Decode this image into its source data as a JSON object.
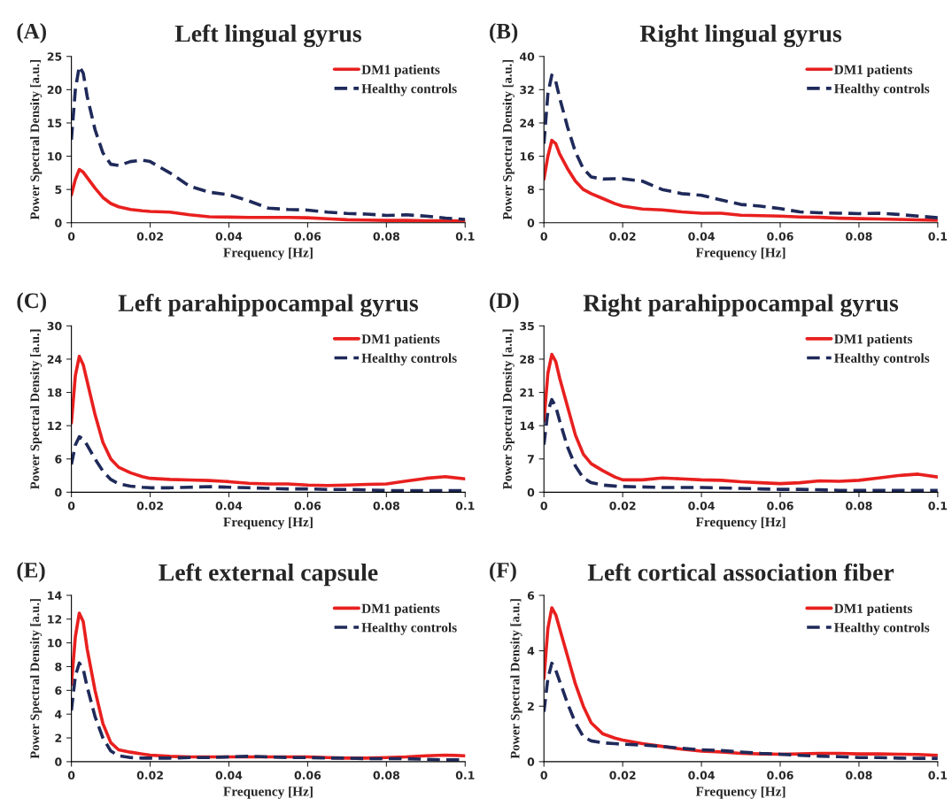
{
  "chart_data": [
    {
      "type": "line",
      "title": "Left lingual gyrus",
      "annotations": [
        "(A)"
      ],
      "xlabel": "Frequency [Hz]",
      "ylabel": "Power Spectral Density [a.u.]",
      "legend": "top right",
      "grid": false,
      "marker": "none",
      "x": [
        0,
        0.001,
        0.002,
        0.003,
        0.004,
        0.006,
        0.008,
        0.01,
        0.012,
        0.015,
        0.018,
        0.02,
        0.025,
        0.03,
        0.035,
        0.04,
        0.045,
        0.05,
        0.055,
        0.06,
        0.065,
        0.07,
        0.075,
        0.08,
        0.085,
        0.09,
        0.095,
        0.1
      ],
      "xlim": [
        0,
        0.1
      ],
      "xticks": [
        0,
        0.02,
        0.04,
        0.06,
        0.08,
        0.1
      ],
      "ylim": [
        0,
        25
      ],
      "yticks": [
        0,
        5,
        10,
        15,
        20,
        25
      ],
      "series": [
        {
          "name": "DM1 patients",
          "color": "#e8201f",
          "line_style": "solid",
          "values": [
            4.2,
            6.5,
            8.0,
            7.6,
            6.8,
            5.2,
            3.8,
            2.9,
            2.4,
            2.0,
            1.8,
            1.7,
            1.6,
            1.2,
            0.9,
            0.85,
            0.8,
            0.8,
            0.8,
            0.75,
            0.6,
            0.45,
            0.4,
            0.35,
            0.35,
            0.3,
            0.3,
            0.25
          ]
        },
        {
          "name": "Healthy controls",
          "color": "#1f2a5a",
          "line_style": "dashed",
          "values": [
            12.5,
            20,
            23.5,
            22.5,
            19,
            14,
            10.5,
            8.8,
            8.6,
            9.2,
            9.4,
            9.2,
            7.5,
            5.5,
            4.6,
            4.2,
            3.3,
            2.2,
            2.0,
            1.9,
            1.6,
            1.4,
            1.3,
            1.1,
            1.2,
            1.0,
            0.7,
            0.5
          ]
        }
      ]
    },
    {
      "type": "line",
      "title": "Right lingual gyrus",
      "annotations": [
        "(B)"
      ],
      "xlabel": "Frequency [Hz]",
      "ylabel": "Power Spectral Density [a.u.]",
      "legend": "top right",
      "grid": false,
      "marker": "none",
      "x": [
        0,
        0.001,
        0.002,
        0.003,
        0.004,
        0.006,
        0.008,
        0.01,
        0.012,
        0.015,
        0.018,
        0.02,
        0.025,
        0.03,
        0.035,
        0.04,
        0.045,
        0.05,
        0.055,
        0.06,
        0.065,
        0.07,
        0.075,
        0.08,
        0.085,
        0.09,
        0.095,
        0.1
      ],
      "xlim": [
        0,
        0.1
      ],
      "xticks": [
        0,
        0.02,
        0.04,
        0.06,
        0.08,
        0.1
      ],
      "ylim": [
        0,
        40
      ],
      "yticks": [
        0,
        8,
        16,
        24,
        32,
        40
      ],
      "series": [
        {
          "name": "DM1 patients",
          "color": "#e8201f",
          "line_style": "solid",
          "values": [
            10.5,
            16,
            19.8,
            19,
            16.5,
            13,
            10,
            8,
            7,
            5.8,
            4.6,
            4.0,
            3.3,
            3.1,
            2.6,
            2.3,
            2.3,
            1.8,
            1.7,
            1.6,
            1.4,
            1.3,
            1.1,
            1.0,
            0.9,
            0.8,
            0.7,
            0.6
          ]
        },
        {
          "name": "Healthy controls",
          "color": "#1f2a5a",
          "line_style": "dashed",
          "values": [
            19,
            31,
            35.5,
            34,
            30,
            23,
            17,
            13,
            11,
            10.5,
            10.6,
            10.6,
            10,
            8,
            7,
            6.6,
            5.5,
            4.4,
            4.0,
            3.4,
            2.6,
            2.4,
            2.3,
            2.2,
            2.3,
            2.0,
            1.6,
            1.2
          ]
        }
      ]
    },
    {
      "type": "line",
      "title": "Left parahippocampal gyrus",
      "annotations": [
        "(C)"
      ],
      "xlabel": "Frequency [Hz]",
      "ylabel": "Power Spectral Density [a.u.]",
      "legend": "top right",
      "grid": false,
      "marker": "none",
      "x": [
        0,
        0.001,
        0.002,
        0.003,
        0.004,
        0.006,
        0.008,
        0.01,
        0.012,
        0.015,
        0.018,
        0.02,
        0.025,
        0.03,
        0.035,
        0.04,
        0.045,
        0.05,
        0.055,
        0.06,
        0.065,
        0.07,
        0.075,
        0.08,
        0.085,
        0.09,
        0.095,
        0.1
      ],
      "xlim": [
        0,
        0.1
      ],
      "xticks": [
        0,
        0.02,
        0.04,
        0.06,
        0.08,
        0.1
      ],
      "ylim": [
        0,
        30
      ],
      "yticks": [
        0,
        6,
        12,
        18,
        24,
        30
      ],
      "series": [
        {
          "name": "DM1 patients",
          "color": "#e8201f",
          "line_style": "solid",
          "values": [
            12.5,
            21,
            24.5,
            23,
            20,
            14,
            9,
            6,
            4.5,
            3.5,
            2.8,
            2.5,
            2.3,
            2.2,
            2.1,
            1.9,
            1.6,
            1.5,
            1.5,
            1.3,
            1.2,
            1.3,
            1.4,
            1.5,
            2.0,
            2.5,
            2.8,
            2.4
          ]
        },
        {
          "name": "Healthy controls",
          "color": "#1f2a5a",
          "line_style": "dashed",
          "values": [
            5,
            8.5,
            10,
            9.6,
            8.5,
            6,
            3.8,
            2.3,
            1.5,
            1.1,
            0.9,
            0.8,
            0.8,
            0.9,
            1.0,
            0.9,
            0.8,
            0.7,
            0.6,
            0.6,
            0.5,
            0.5,
            0.4,
            0.3,
            0.3,
            0.3,
            0.3,
            0.3
          ]
        }
      ]
    },
    {
      "type": "line",
      "title": "Right parahippocampal gyrus",
      "annotations": [
        "(D)"
      ],
      "xlabel": "Frequency [Hz]",
      "ylabel": "Power Spectral Density [a.u.]",
      "legend": "top right",
      "grid": false,
      "marker": "none",
      "x": [
        0,
        0.001,
        0.002,
        0.003,
        0.004,
        0.006,
        0.008,
        0.01,
        0.012,
        0.015,
        0.018,
        0.02,
        0.025,
        0.03,
        0.035,
        0.04,
        0.045,
        0.05,
        0.055,
        0.06,
        0.065,
        0.07,
        0.075,
        0.08,
        0.085,
        0.09,
        0.095,
        0.1
      ],
      "xlim": [
        0,
        0.1
      ],
      "xticks": [
        0,
        0.02,
        0.04,
        0.06,
        0.08,
        0.1
      ],
      "ylim": [
        0,
        35
      ],
      "yticks": [
        0,
        7,
        14,
        21,
        28,
        35
      ],
      "series": [
        {
          "name": "DM1 patients",
          "color": "#e8201f",
          "line_style": "solid",
          "values": [
            15,
            25,
            29,
            27.5,
            24,
            18,
            12,
            8,
            6,
            4.5,
            3.2,
            2.6,
            2.6,
            3.0,
            2.8,
            2.6,
            2.5,
            2.2,
            2.0,
            1.8,
            2.0,
            2.4,
            2.3,
            2.5,
            3.0,
            3.5,
            3.8,
            3.2
          ]
        },
        {
          "name": "Healthy controls",
          "color": "#1f2a5a",
          "line_style": "dashed",
          "values": [
            10,
            17,
            19.5,
            18,
            15,
            9.5,
            5.5,
            3,
            2,
            1.5,
            1.3,
            1.2,
            1.1,
            1.0,
            1.0,
            1.0,
            0.9,
            0.8,
            0.7,
            0.6,
            0.6,
            0.5,
            0.4,
            0.4,
            0.4,
            0.4,
            0.4,
            0.4
          ]
        }
      ]
    },
    {
      "type": "line",
      "title": "Left external capsule",
      "annotations": [
        "(E)"
      ],
      "xlabel": "Frequency [Hz]",
      "ylabel": "Power Spectral Density [a.u.]",
      "legend": "top right",
      "grid": false,
      "marker": "none",
      "x": [
        0,
        0.001,
        0.002,
        0.003,
        0.004,
        0.006,
        0.008,
        0.01,
        0.012,
        0.015,
        0.018,
        0.02,
        0.025,
        0.03,
        0.035,
        0.04,
        0.045,
        0.05,
        0.055,
        0.06,
        0.065,
        0.07,
        0.075,
        0.08,
        0.085,
        0.09,
        0.095,
        0.1
      ],
      "xlim": [
        0,
        0.1
      ],
      "xticks": [
        0,
        0.02,
        0.04,
        0.06,
        0.08,
        0.1
      ],
      "ylim": [
        0,
        14
      ],
      "yticks": [
        0,
        2,
        4,
        6,
        8,
        10,
        12,
        14
      ],
      "series": [
        {
          "name": "DM1 patients",
          "color": "#e8201f",
          "line_style": "solid",
          "values": [
            6.5,
            10.5,
            12.5,
            11.8,
            9.5,
            6,
            3.2,
            1.6,
            1,
            0.8,
            0.65,
            0.55,
            0.45,
            0.4,
            0.4,
            0.4,
            0.4,
            0.4,
            0.4,
            0.4,
            0.35,
            0.3,
            0.3,
            0.35,
            0.4,
            0.5,
            0.55,
            0.5
          ]
        },
        {
          "name": "Healthy controls",
          "color": "#1f2a5a",
          "line_style": "dashed",
          "values": [
            4.3,
            7.2,
            8.3,
            7.8,
            6.3,
            3.8,
            2,
            0.9,
            0.5,
            0.35,
            0.3,
            0.3,
            0.3,
            0.35,
            0.35,
            0.4,
            0.45,
            0.4,
            0.35,
            0.35,
            0.3,
            0.3,
            0.25,
            0.25,
            0.25,
            0.2,
            0.15,
            0.15
          ]
        }
      ]
    },
    {
      "type": "line",
      "title": "Left cortical association fiber",
      "annotations": [
        "(F)"
      ],
      "xlabel": "Frequency [Hz]",
      "ylabel": "Power Spectral Density [a.u.]",
      "legend": "top right",
      "grid": false,
      "marker": "none",
      "x": [
        0,
        0.001,
        0.002,
        0.003,
        0.004,
        0.006,
        0.008,
        0.01,
        0.012,
        0.015,
        0.018,
        0.02,
        0.025,
        0.03,
        0.035,
        0.04,
        0.045,
        0.05,
        0.055,
        0.06,
        0.065,
        0.07,
        0.075,
        0.08,
        0.085,
        0.09,
        0.095,
        0.1
      ],
      "xlim": [
        0,
        0.1
      ],
      "xticks": [
        0,
        0.02,
        0.04,
        0.06,
        0.08,
        0.1
      ],
      "ylim": [
        0,
        6
      ],
      "yticks": [
        0,
        2,
        4,
        6
      ],
      "series": [
        {
          "name": "DM1 patients",
          "color": "#e8201f",
          "line_style": "solid",
          "values": [
            3,
            4.8,
            5.55,
            5.3,
            4.8,
            3.8,
            2.8,
            2.0,
            1.4,
            1.0,
            0.85,
            0.78,
            0.65,
            0.55,
            0.45,
            0.38,
            0.35,
            0.3,
            0.28,
            0.27,
            0.28,
            0.3,
            0.3,
            0.28,
            0.28,
            0.27,
            0.26,
            0.23
          ]
        },
        {
          "name": "Healthy controls",
          "color": "#1f2a5a",
          "line_style": "dashed",
          "values": [
            1.8,
            3.0,
            3.55,
            3.3,
            2.9,
            2.1,
            1.4,
            0.9,
            0.75,
            0.68,
            0.65,
            0.63,
            0.6,
            0.55,
            0.48,
            0.43,
            0.4,
            0.35,
            0.3,
            0.27,
            0.23,
            0.2,
            0.18,
            0.15,
            0.15,
            0.13,
            0.12,
            0.12
          ]
        }
      ]
    }
  ]
}
